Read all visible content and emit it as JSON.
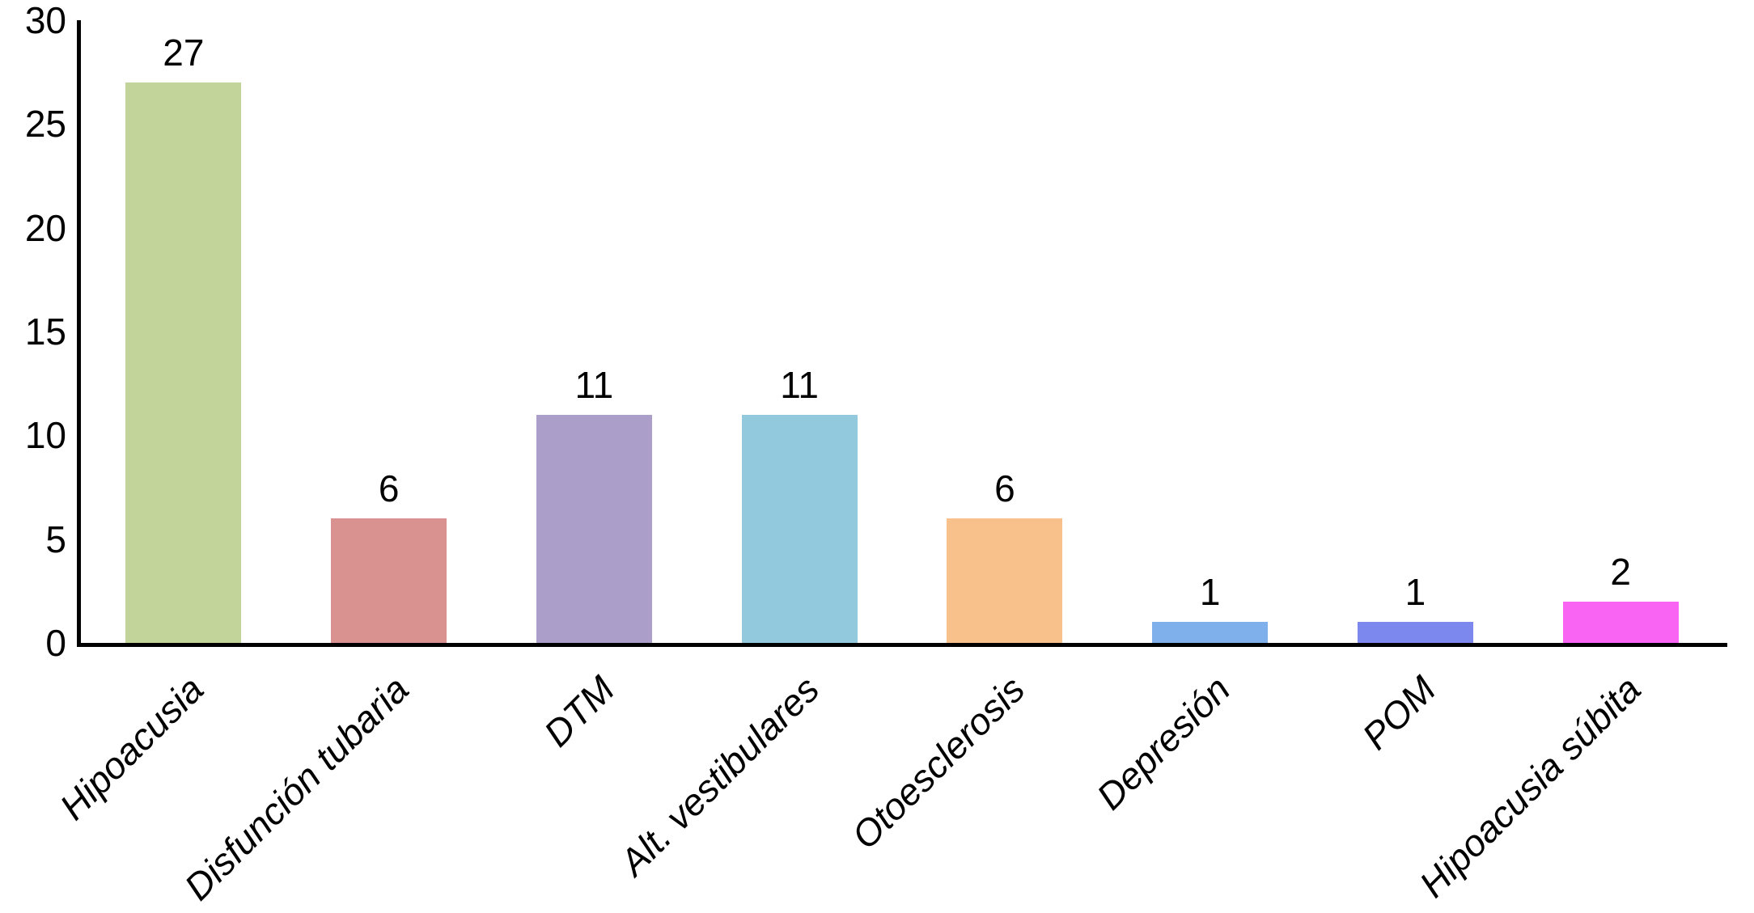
{
  "chart_data": {
    "type": "bar",
    "categories": [
      "Hipoacusia",
      "Disfunción tubaria",
      "DTM",
      "Alt. vestibulares",
      "Otoesclerosis",
      "Depresión",
      "POM",
      "Hipoacusia súbita"
    ],
    "values": [
      27,
      6,
      11,
      11,
      6,
      1,
      1,
      2
    ],
    "colors": [
      "#c3d49b",
      "#d9928f",
      "#ab9ec9",
      "#92c9dd",
      "#f8c18c",
      "#80b0ec",
      "#7c88ee",
      "#f964f2"
    ],
    "yticks": [
      0,
      5,
      10,
      15,
      20,
      25,
      30
    ],
    "ylim": [
      0,
      30
    ],
    "title": "",
    "xlabel": "",
    "ylabel": "",
    "grid": false,
    "legend_position": "none",
    "axis_color": "#000000",
    "text_color": "#000000"
  }
}
